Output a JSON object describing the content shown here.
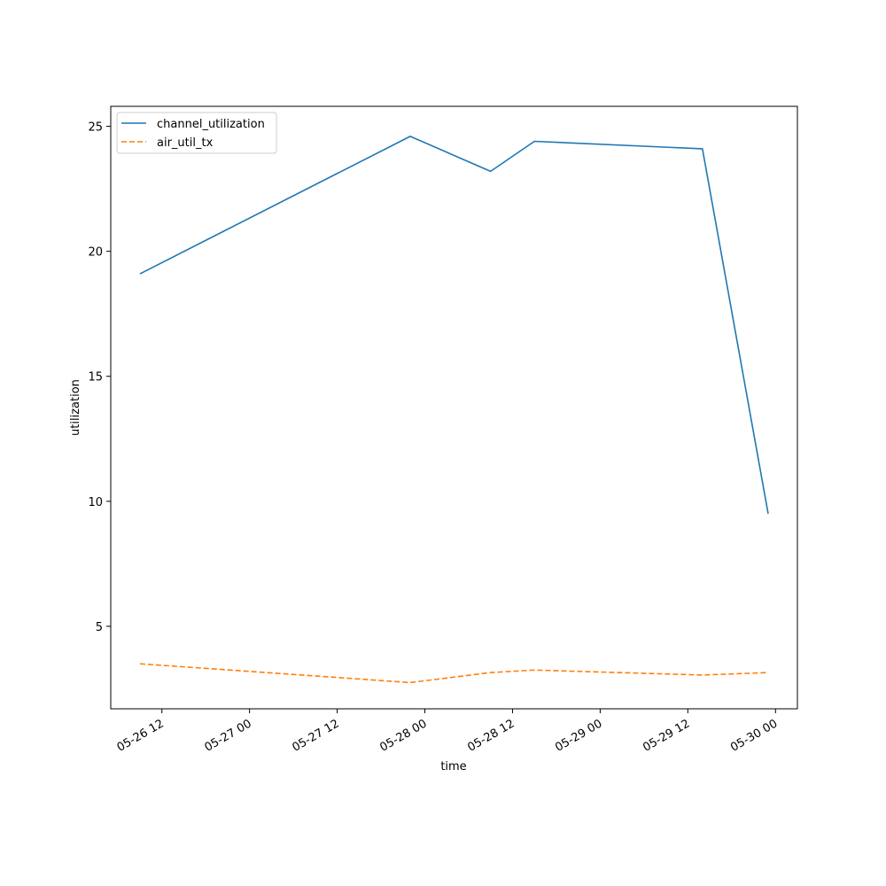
{
  "chart_data": {
    "type": "line",
    "title": "",
    "xlabel": "time",
    "ylabel": "utilization",
    "x_ticks": [
      "05-26 12",
      "05-27 00",
      "05-27 12",
      "05-28 00",
      "05-28 12",
      "05-29 00",
      "05-29 12",
      "05-30 00"
    ],
    "y_ticks": [
      "5",
      "10",
      "15",
      "20",
      "25"
    ],
    "xlim": [
      "2024-05-26 05:00",
      "2024-05-30 03:00"
    ],
    "ylim": [
      1.7,
      25.8
    ],
    "legend_position": "upper-left",
    "grid": false,
    "x": [
      "2024-05-26 09:00",
      "2024-05-27 22:00",
      "2024-05-28 09:00",
      "2024-05-28 15:00",
      "2024-05-29 14:00",
      "2024-05-29 23:00"
    ],
    "series": [
      {
        "name": "channel_utilization",
        "values": [
          19.1,
          24.6,
          23.2,
          24.4,
          24.1,
          9.5
        ],
        "color": "#1f77b4",
        "style": "solid"
      },
      {
        "name": "air_util_tx",
        "values": [
          3.5,
          2.75,
          3.15,
          3.25,
          3.05,
          3.15
        ],
        "color": "#ff7f0e",
        "style": "dashed"
      }
    ]
  }
}
